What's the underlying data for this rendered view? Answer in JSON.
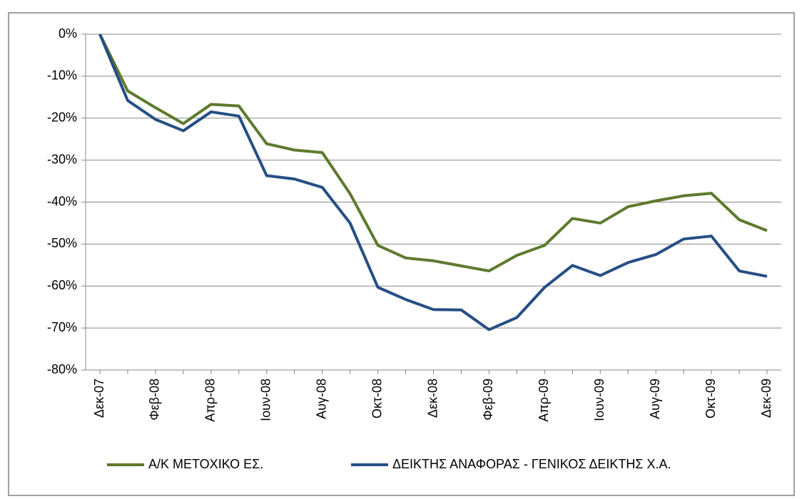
{
  "chart_data": {
    "type": "line",
    "categories": [
      "Δεκ-07",
      null,
      "Φεβ-08",
      null,
      "Απρ-08",
      null,
      "Ιουν-08",
      null,
      "Αυγ-08",
      null,
      "Οκτ-08",
      null,
      "Δεκ-08",
      null,
      "Φεβ-09",
      null,
      "Απρ-09",
      null,
      "Ιουν-09",
      null,
      "Αυγ-09",
      null,
      "Οκτ-09",
      null,
      "Δεκ-09"
    ],
    "series": [
      {
        "name": "Α/Κ ΜΕΤΟΧΙΚΟ ΕΣ.",
        "color": "#5e7a2e",
        "values": [
          0,
          -13.5,
          -17.5,
          -21.3,
          -16.7,
          -17.1,
          -26.1,
          -27.6,
          -28.2,
          -38,
          -50.3,
          -53.3,
          -54,
          -55.2,
          -56.4,
          -52.7,
          -50.3,
          -43.9,
          -45,
          -41.1,
          -39.7,
          -38.5,
          -37.9,
          -44.2,
          -46.8
        ]
      },
      {
        "name": "ΔΕΙΚΤΗΣ ΑΝΑΦΟΡΑΣ - ΓΕΝΙΚΟΣ ΔΕΙΚΤΗΣ Χ.Α.",
        "color": "#254e84",
        "values": [
          0,
          -15.8,
          -20.3,
          -23,
          -18.5,
          -19.5,
          -33.7,
          -34.5,
          -36.5,
          -45,
          -60.3,
          -63.2,
          -65.6,
          -65.7,
          -70.4,
          -67.5,
          -60.3,
          -55.1,
          -57.5,
          -54.4,
          -52.5,
          -48.8,
          -48.1,
          -56.4,
          -57.7
        ]
      }
    ],
    "ylim": [
      -80,
      0
    ],
    "yticks": [
      {
        "value": 0,
        "label": "0%"
      },
      {
        "value": -10,
        "label": "-10%"
      },
      {
        "value": -20,
        "label": "-20%"
      },
      {
        "value": -30,
        "label": "-30%"
      },
      {
        "value": -40,
        "label": "-40%"
      },
      {
        "value": -50,
        "label": "-50%"
      },
      {
        "value": -60,
        "label": "-60%"
      },
      {
        "value": -70,
        "label": "-70%"
      },
      {
        "value": -80,
        "label": "-80%"
      }
    ],
    "grid": true,
    "legend": "bottom"
  }
}
